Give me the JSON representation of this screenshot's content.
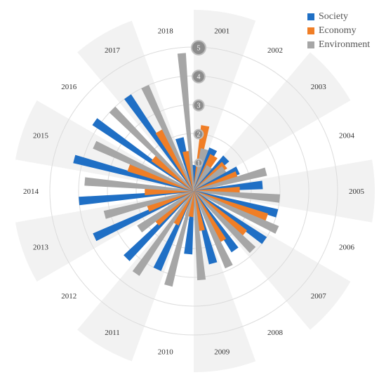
{
  "chart_data": {
    "type": "radial-bar",
    "title": "",
    "categories": [
      "2001",
      "2002",
      "2003",
      "2004",
      "2005",
      "2006",
      "2007",
      "2008",
      "2009",
      "2010",
      "2011",
      "2012",
      "2013",
      "2014",
      "2015",
      "2016",
      "2017",
      "2018"
    ],
    "series": [
      {
        "name": "Society",
        "color": "#1f6fc5",
        "values": [
          0.9,
          1.6,
          1.6,
          1.7,
          2.4,
          3.0,
          3.0,
          2.5,
          2.6,
          2.2,
          3.0,
          3.3,
          3.8,
          4.0,
          4.3,
          4.2,
          4.0,
          1.9
        ]
      },
      {
        "name": "Economy",
        "color": "#f07e26",
        "values": [
          2.3,
          1.4,
          1.4,
          1.6,
          1.6,
          2.7,
          2.3,
          2.0,
          1.4,
          0.9,
          1.3,
          1.7,
          1.7,
          1.7,
          2.4,
          1.8,
          2.4,
          1.4
        ]
      },
      {
        "name": "Environment",
        "color": "#a6a6a6",
        "values": [
          1.5,
          1.0,
          1.3,
          2.6,
          3.0,
          3.2,
          2.9,
          2.9,
          3.1,
          3.4,
          3.5,
          2.3,
          3.2,
          3.8,
          3.8,
          4.0,
          4.0,
          4.8
        ]
      }
    ],
    "highlighted_categories": [
      "2001",
      "2003",
      "2005",
      "2007",
      "2009",
      "2011",
      "2013",
      "2015",
      "2017"
    ],
    "rlim": [
      0,
      5
    ],
    "r_ticks": [
      "1",
      "2",
      "3",
      "4",
      "5"
    ],
    "grid": true,
    "legend_position": "top-right"
  }
}
